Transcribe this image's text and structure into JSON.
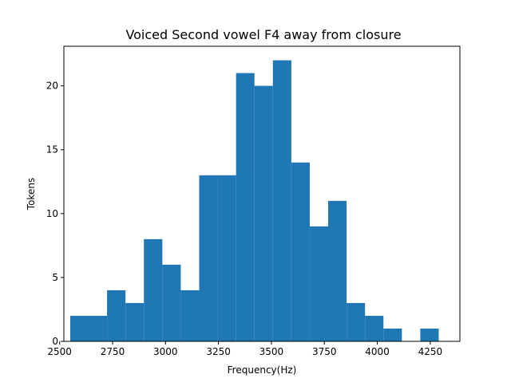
{
  "chart_data": {
    "type": "bar",
    "title": "Voiced Second vowel F4 away from closure",
    "xlabel": "Frequency(Hz)",
    "ylabel": "Tokens",
    "xlim": [
      2520,
      4390
    ],
    "ylim": [
      0,
      23.1
    ],
    "xticks": [
      2500,
      2750,
      3000,
      3250,
      3500,
      3750,
      4000,
      4250
    ],
    "yticks": [
      0,
      5,
      10,
      15,
      20
    ],
    "bin_edges": [
      2550,
      2637,
      2724,
      2811,
      2898,
      2985,
      3072,
      3159,
      3246,
      3333,
      3420,
      3507,
      3594,
      3681,
      3768,
      3855,
      3942,
      4029,
      4116,
      4203,
      4290
    ],
    "values": [
      2,
      2,
      4,
      3,
      8,
      6,
      4,
      13,
      13,
      21,
      20,
      22,
      14,
      9,
      11,
      3,
      2,
      1,
      0,
      1
    ],
    "bar_color": "#1f77b4",
    "grid": false,
    "legend": "none"
  }
}
